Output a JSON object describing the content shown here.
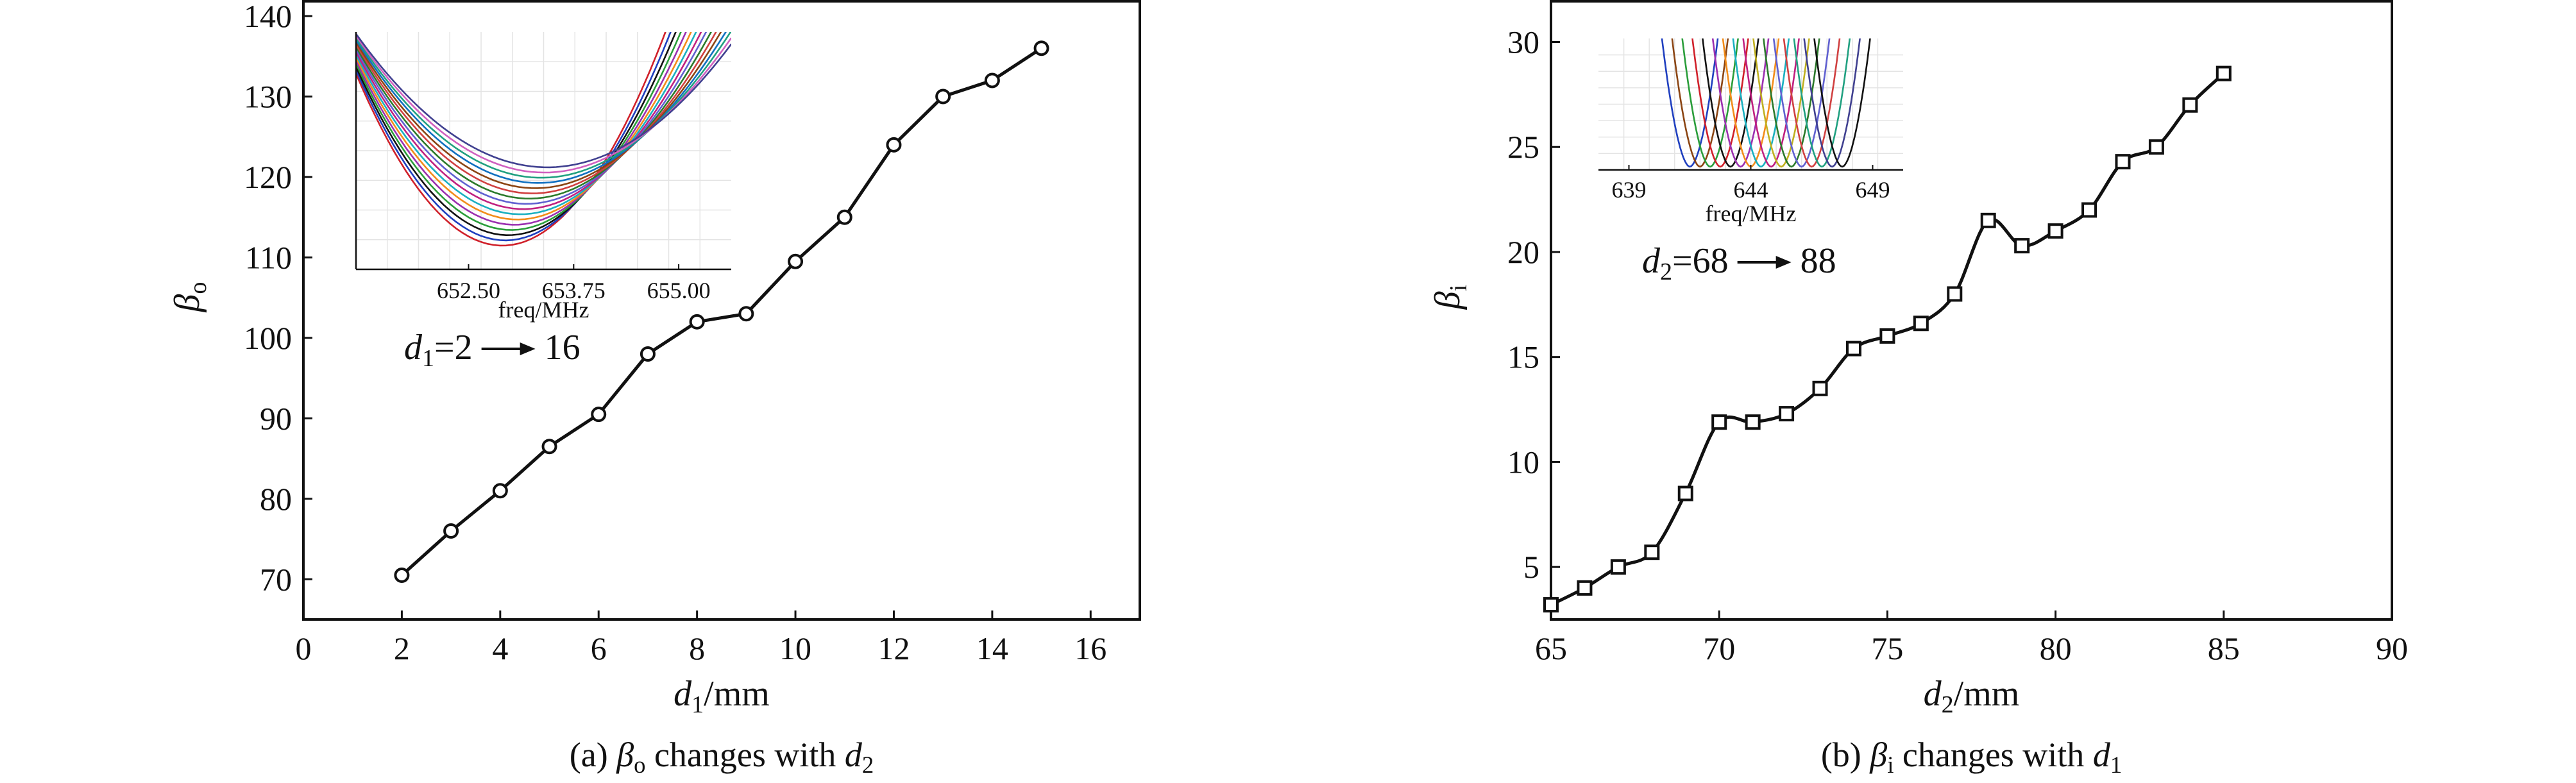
{
  "chart_data": [
    {
      "type": "line",
      "id": "a",
      "caption": "(a) βo changes with d2",
      "xlabel": "d1/mm",
      "ylabel": "βo",
      "xlim": [
        0,
        17
      ],
      "ylim": [
        65,
        142
      ],
      "xticks": [
        0,
        2,
        4,
        6,
        8,
        10,
        12,
        14,
        16
      ],
      "yticks": [
        70,
        80,
        90,
        100,
        110,
        120,
        130,
        140
      ],
      "marker": "circle",
      "series": [
        {
          "x": [
            2,
            3,
            4,
            5,
            6,
            7,
            8,
            9,
            10,
            11,
            12,
            13,
            14,
            15
          ],
          "y": [
            70.5,
            76,
            81,
            86.5,
            90.5,
            98,
            102,
            103,
            109.5,
            115,
            124,
            130,
            132,
            136
          ]
        }
      ],
      "inset": {
        "xlabel": "freq/MHz",
        "xticks": [
          "652.50",
          "653.75",
          "655.00"
        ],
        "annotation": {
          "prefix": "d1=2",
          "suffix": "16"
        },
        "curve_colors": [
          "#d0202a",
          "#1f3fbf",
          "#111111",
          "#2a9d3a",
          "#9b30b0",
          "#f28c1a",
          "#1ab0c0",
          "#c02080",
          "#6060d0",
          "#2b7a2b",
          "#d04040",
          "#8b4513",
          "#1070c0",
          "#20a080",
          "#d060c0",
          "#404090"
        ]
      }
    },
    {
      "type": "line",
      "id": "b",
      "caption": "(b) βi changes with d1",
      "xlabel": "d2/mm",
      "ylabel": "βi",
      "xlim": [
        65,
        90
      ],
      "ylim": [
        2.5,
        32
      ],
      "xticks": [
        65,
        70,
        75,
        80,
        85,
        90
      ],
      "yticks": [
        5,
        10,
        15,
        20,
        25,
        30
      ],
      "marker": "square",
      "series": [
        {
          "x": [
            65,
            66,
            67,
            68,
            69,
            70,
            71,
            72,
            73,
            74,
            75,
            76,
            77,
            78,
            79,
            80,
            81,
            82,
            83,
            84,
            85
          ],
          "y": [
            3.2,
            4.0,
            5.0,
            5.7,
            8.5,
            11.9,
            11.9,
            12.3,
            13.5,
            15.4,
            16.0,
            16.6,
            18.0,
            21.5,
            20.3,
            21.0,
            22.0,
            24.3,
            25.0,
            27.0,
            28.5
          ]
        }
      ],
      "inset": {
        "xlabel": "freq/MHz",
        "xticks": [
          "639",
          "644",
          "649"
        ],
        "annotation": {
          "prefix": "d2=68",
          "suffix": "88"
        },
        "curve_colors": [
          "#1f3fbf",
          "#8b4513",
          "#2a9d3a",
          "#d0202a",
          "#111111",
          "#9b30b0",
          "#f28c1a",
          "#1ab0c0",
          "#c02080",
          "#c0b020",
          "#2b7a2b",
          "#6060d0",
          "#d04040",
          "#20a080",
          "#404090",
          "#111111"
        ]
      }
    }
  ]
}
